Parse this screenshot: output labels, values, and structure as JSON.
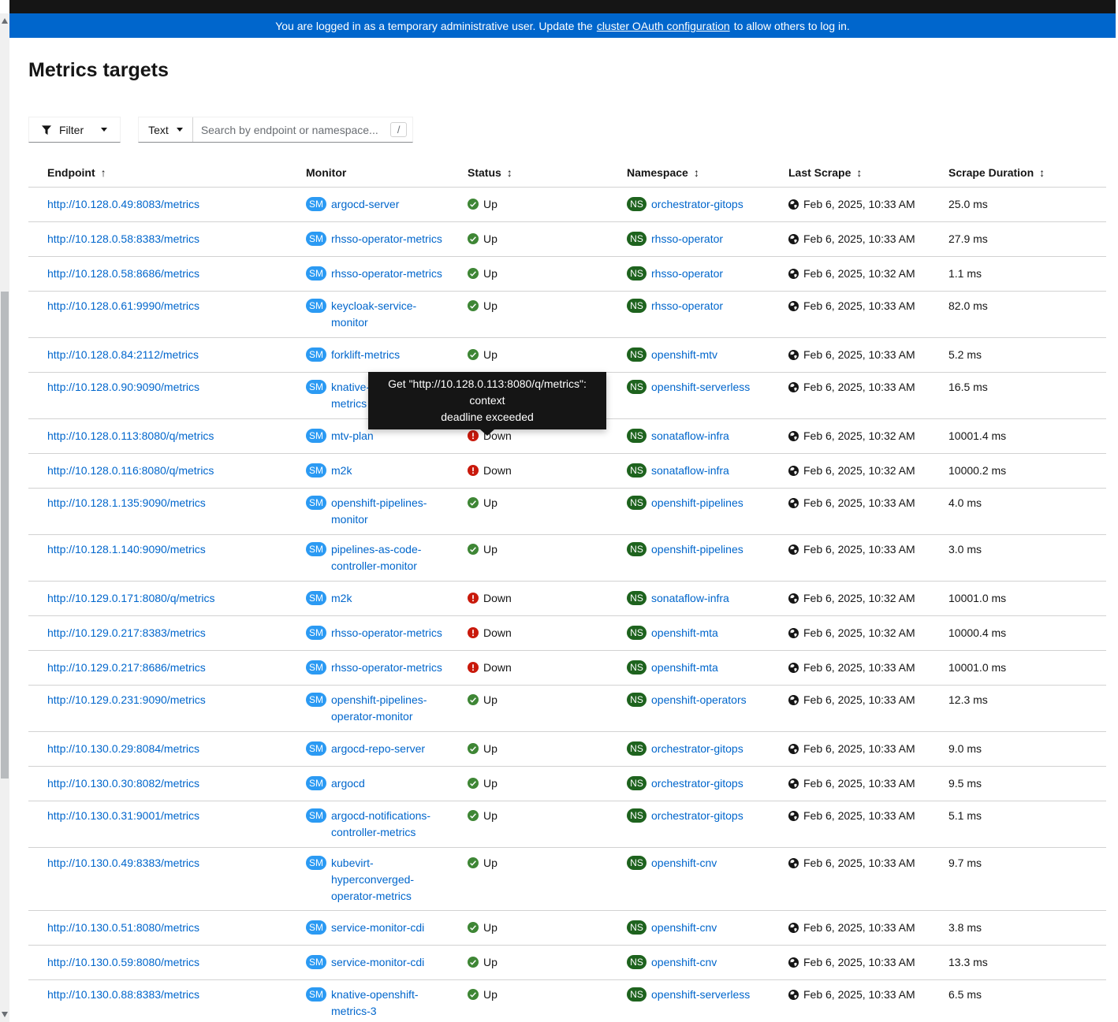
{
  "banner": {
    "text_before": "You are logged in as a temporary administrative user. Update the",
    "link_label": "cluster OAuth configuration",
    "text_after": "to allow others to log in."
  },
  "page": {
    "title": "Metrics targets"
  },
  "toolbar": {
    "filter_label": "Filter",
    "search_type_label": "Text",
    "search_placeholder": "Search by endpoint or namespace...",
    "search_value": "",
    "search_shortcut": "/"
  },
  "icons": {
    "sort_asc": "↑",
    "sort_both": "↕"
  },
  "table": {
    "columns": [
      {
        "label": "Endpoint",
        "sort": "asc"
      },
      {
        "label": "Monitor",
        "sort": "none"
      },
      {
        "label": "Status",
        "sort": "both"
      },
      {
        "label": "Namespace",
        "sort": "both"
      },
      {
        "label": "Last Scrape",
        "sort": "both"
      },
      {
        "label": "Scrape Duration",
        "sort": "both"
      }
    ],
    "badges": {
      "monitor": "SM",
      "namespace": "NS"
    },
    "rows": [
      {
        "endpoint": "http://10.128.0.49:8083/metrics",
        "monitor_lines": [
          "argocd-server"
        ],
        "status": "Up",
        "namespace": "orchestrator-gitops",
        "last_scrape": "Feb 6, 2025, 10:33 AM",
        "duration": "25.0 ms"
      },
      {
        "endpoint": "http://10.128.0.58:8383/metrics",
        "monitor_lines": [
          "rhsso-operator-metrics"
        ],
        "status": "Up",
        "namespace": "rhsso-operator",
        "last_scrape": "Feb 6, 2025, 10:33 AM",
        "duration": "27.9 ms"
      },
      {
        "endpoint": "http://10.128.0.58:8686/metrics",
        "monitor_lines": [
          "rhsso-operator-metrics"
        ],
        "status": "Up",
        "namespace": "rhsso-operator",
        "last_scrape": "Feb 6, 2025, 10:32 AM",
        "duration": "1.1 ms"
      },
      {
        "endpoint": "http://10.128.0.61:9990/metrics",
        "monitor_lines": [
          "keycloak-service-",
          "monitor"
        ],
        "status": "Up",
        "namespace": "rhsso-operator",
        "last_scrape": "Feb 6, 2025, 10:33 AM",
        "duration": "82.0 ms"
      },
      {
        "endpoint": "http://10.128.0.84:2112/metrics",
        "monitor_lines": [
          "forklift-metrics"
        ],
        "status": "Up",
        "namespace": "openshift-mtv",
        "last_scrape": "Feb 6, 2025, 10:33 AM",
        "duration": "5.2 ms"
      },
      {
        "endpoint": "http://10.128.0.90:9090/metrics",
        "monitor_lines": [
          "knative-",
          "metrics"
        ],
        "status": null,
        "namespace": "openshift-serverless",
        "last_scrape": "Feb 6, 2025, 10:33 AM",
        "duration": "16.5 ms"
      },
      {
        "endpoint": "http://10.128.0.113:8080/q/metrics",
        "monitor_lines": [
          "mtv-plan"
        ],
        "status": "Down",
        "namespace": "sonataflow-infra",
        "last_scrape": "Feb 6, 2025, 10:32 AM",
        "duration": "10001.4 ms"
      },
      {
        "endpoint": "http://10.128.0.116:8080/q/metrics",
        "monitor_lines": [
          "m2k"
        ],
        "status": "Down",
        "namespace": "sonataflow-infra",
        "last_scrape": "Feb 6, 2025, 10:32 AM",
        "duration": "10000.2 ms"
      },
      {
        "endpoint": "http://10.128.1.135:9090/metrics",
        "monitor_lines": [
          "openshift-pipelines-",
          "monitor"
        ],
        "status": "Up",
        "namespace": "openshift-pipelines",
        "last_scrape": "Feb 6, 2025, 10:33 AM",
        "duration": "4.0 ms"
      },
      {
        "endpoint": "http://10.128.1.140:9090/metrics",
        "monitor_lines": [
          "pipelines-as-code-",
          "controller-monitor"
        ],
        "status": "Up",
        "namespace": "openshift-pipelines",
        "last_scrape": "Feb 6, 2025, 10:33 AM",
        "duration": "3.0 ms"
      },
      {
        "endpoint": "http://10.129.0.171:8080/q/metrics",
        "monitor_lines": [
          "m2k"
        ],
        "status": "Down",
        "namespace": "sonataflow-infra",
        "last_scrape": "Feb 6, 2025, 10:32 AM",
        "duration": "10001.0 ms"
      },
      {
        "endpoint": "http://10.129.0.217:8383/metrics",
        "monitor_lines": [
          "rhsso-operator-metrics"
        ],
        "status": "Down",
        "namespace": "openshift-mta",
        "last_scrape": "Feb 6, 2025, 10:32 AM",
        "duration": "10000.4 ms"
      },
      {
        "endpoint": "http://10.129.0.217:8686/metrics",
        "monitor_lines": [
          "rhsso-operator-metrics"
        ],
        "status": "Down",
        "namespace": "openshift-mta",
        "last_scrape": "Feb 6, 2025, 10:33 AM",
        "duration": "10001.0 ms"
      },
      {
        "endpoint": "http://10.129.0.231:9090/metrics",
        "monitor_lines": [
          "openshift-pipelines-",
          "operator-monitor"
        ],
        "status": "Up",
        "namespace": "openshift-operators",
        "last_scrape": "Feb 6, 2025, 10:33 AM",
        "duration": "12.3 ms"
      },
      {
        "endpoint": "http://10.130.0.29:8084/metrics",
        "monitor_lines": [
          "argocd-repo-server"
        ],
        "status": "Up",
        "namespace": "orchestrator-gitops",
        "last_scrape": "Feb 6, 2025, 10:33 AM",
        "duration": "9.0 ms"
      },
      {
        "endpoint": "http://10.130.0.30:8082/metrics",
        "monitor_lines": [
          "argocd"
        ],
        "status": "Up",
        "namespace": "orchestrator-gitops",
        "last_scrape": "Feb 6, 2025, 10:33 AM",
        "duration": "9.5 ms"
      },
      {
        "endpoint": "http://10.130.0.31:9001/metrics",
        "monitor_lines": [
          "argocd-notifications-",
          "controller-metrics"
        ],
        "status": "Up",
        "namespace": "orchestrator-gitops",
        "last_scrape": "Feb 6, 2025, 10:33 AM",
        "duration": "5.1 ms"
      },
      {
        "endpoint": "http://10.130.0.49:8383/metrics",
        "monitor_lines": [
          "kubevirt-",
          "hyperconverged-",
          "operator-metrics"
        ],
        "status": "Up",
        "namespace": "openshift-cnv",
        "last_scrape": "Feb 6, 2025, 10:33 AM",
        "duration": "9.7 ms"
      },
      {
        "endpoint": "http://10.130.0.51:8080/metrics",
        "monitor_lines": [
          "service-monitor-cdi"
        ],
        "status": "Up",
        "namespace": "openshift-cnv",
        "last_scrape": "Feb 6, 2025, 10:33 AM",
        "duration": "3.8 ms"
      },
      {
        "endpoint": "http://10.130.0.59:8080/metrics",
        "monitor_lines": [
          "service-monitor-cdi"
        ],
        "status": "Up",
        "namespace": "openshift-cnv",
        "last_scrape": "Feb 6, 2025, 10:33 AM",
        "duration": "13.3 ms"
      },
      {
        "endpoint": "http://10.130.0.88:8383/metrics",
        "monitor_lines": [
          "knative-openshift-",
          "metrics-3"
        ],
        "status": "Up",
        "namespace": "openshift-serverless",
        "last_scrape": "Feb 6, 2025, 10:33 AM",
        "duration": "6.5 ms"
      }
    ]
  },
  "tooltip": {
    "lines": [
      "Get \"http://10.128.0.113:8080/q/metrics\": context",
      "deadline exceeded"
    ]
  },
  "colors": {
    "banner_blue": "#0066cc",
    "masthead_black": "#151515",
    "link_blue": "#0066cc",
    "service_monitor_badge_blue": "#2b9af3",
    "namespace_badge_green": "#1e631e",
    "status_up_green": "#3e8635",
    "status_down_red": "#c9190b",
    "tooltip_black": "#151515"
  }
}
